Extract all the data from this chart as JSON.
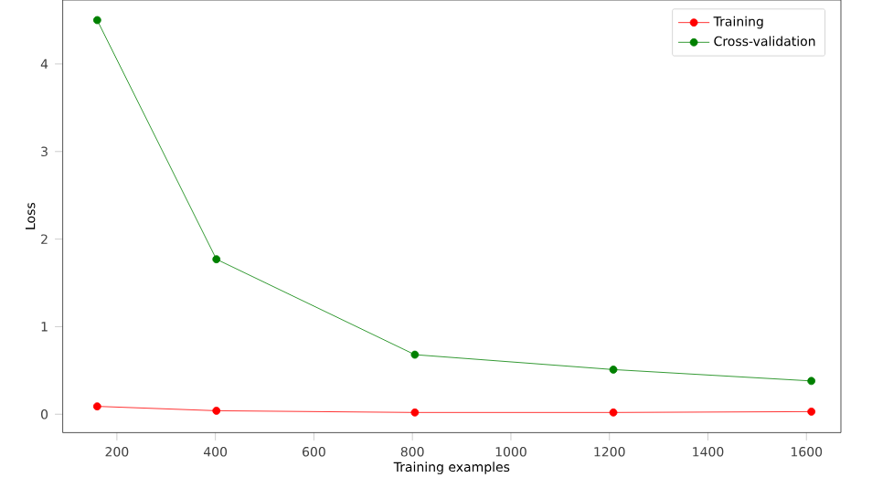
{
  "chart_data": {
    "type": "line",
    "xlabel": "Training examples",
    "ylabel": "Loss",
    "x": [
      160,
      402,
      805,
      1208,
      1610
    ],
    "series": [
      {
        "name": "Training",
        "color": "#ff0000",
        "values": [
          0.09,
          0.04,
          0.02,
          0.02,
          0.03
        ]
      },
      {
        "name": "Cross-validation",
        "color": "#008000",
        "values": [
          4.5,
          1.77,
          0.68,
          0.51,
          0.38
        ]
      }
    ],
    "xlim": [
      90,
      1670
    ],
    "ylim": [
      -0.21,
      4.73
    ],
    "xticks": [
      200,
      400,
      600,
      800,
      1000,
      1200,
      1400,
      1600
    ],
    "yticks": [
      0,
      1,
      2,
      3,
      4
    ],
    "legend": "top right",
    "marker": "circle",
    "grid": false
  }
}
